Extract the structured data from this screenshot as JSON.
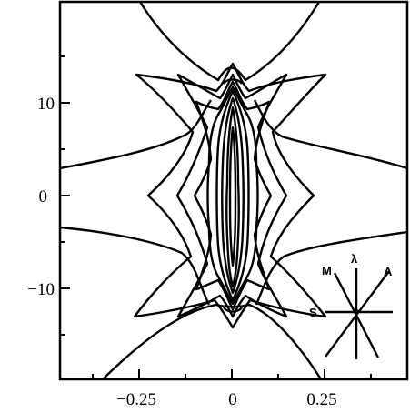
{
  "figure": {
    "x_ticks": [
      "−0.25",
      "0",
      "0.25"
    ],
    "y_ticks": [
      "10",
      "0",
      "−10"
    ],
    "compass": {
      "m": "M",
      "lambda": "λ",
      "a": "A",
      "s": "S"
    }
  },
  "chart_data": {
    "type": "contour",
    "title": "",
    "xlabel": "",
    "ylabel": "",
    "xlim": [
      -0.44,
      0.44
    ],
    "ylim": [
      -18,
      19
    ],
    "x_ticks": [
      -0.25,
      0,
      0.25
    ],
    "y_ticks": [
      -10,
      0,
      10
    ],
    "grid": false,
    "legend": "none",
    "levels": 8
  }
}
